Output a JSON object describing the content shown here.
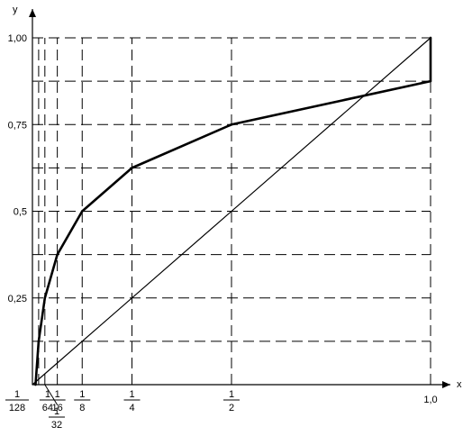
{
  "chart_data": {
    "type": "line",
    "title": "",
    "xlabel": "x",
    "ylabel": "y",
    "xlim": [
      0,
      1
    ],
    "ylim": [
      0,
      1
    ],
    "grid": true,
    "x_ticks": [
      {
        "value": 0.0078125,
        "kind": "frac",
        "num": "1",
        "den": "128"
      },
      {
        "value": 0.015625,
        "kind": "frac",
        "num": "1",
        "den": "64"
      },
      {
        "value": 0.03125,
        "kind": "frac",
        "num": "1",
        "den": "32"
      },
      {
        "value": 0.0625,
        "kind": "frac",
        "num": "1",
        "den": "16"
      },
      {
        "value": 0.125,
        "kind": "frac",
        "num": "1",
        "den": "8"
      },
      {
        "value": 0.25,
        "kind": "frac",
        "num": "1",
        "den": "4"
      },
      {
        "value": 0.5,
        "kind": "frac",
        "num": "1",
        "den": "2"
      },
      {
        "value": 1.0,
        "kind": "text",
        "label": "1,0"
      }
    ],
    "y_ticks": [
      {
        "value": 0.25,
        "label": "0,25"
      },
      {
        "value": 0.5,
        "label": "0,5"
      },
      {
        "value": 0.75,
        "label": "0,75"
      },
      {
        "value": 1.0,
        "label": "1,00"
      }
    ],
    "gridlines_x": [
      0.015625,
      0.03125,
      0.0625,
      0.125,
      0.25,
      0.5,
      1.0
    ],
    "gridlines_y": [
      0.125,
      0.25,
      0.375,
      0.5,
      0.625,
      0.75,
      0.875,
      1.0
    ],
    "series": [
      {
        "points": [
          {
            "x": 0.0078125,
            "y": 0.0
          },
          {
            "x": 0.015625,
            "y": 0.125
          },
          {
            "x": 0.03125,
            "y": 0.25
          },
          {
            "x": 0.0625,
            "y": 0.375
          },
          {
            "x": 0.125,
            "y": 0.5
          },
          {
            "x": 0.25,
            "y": 0.625
          },
          {
            "x": 0.5,
            "y": 0.75
          },
          {
            "x": 1.0,
            "y": 0.875
          },
          {
            "x": 1.0,
            "y": 1.0
          }
        ],
        "color": "#000000",
        "bold": true
      },
      {
        "points": [
          {
            "x": 0.0,
            "y": 0.0
          },
          {
            "x": 1.0,
            "y": 1.0
          }
        ],
        "color": "#000000",
        "bold": false
      }
    ]
  }
}
